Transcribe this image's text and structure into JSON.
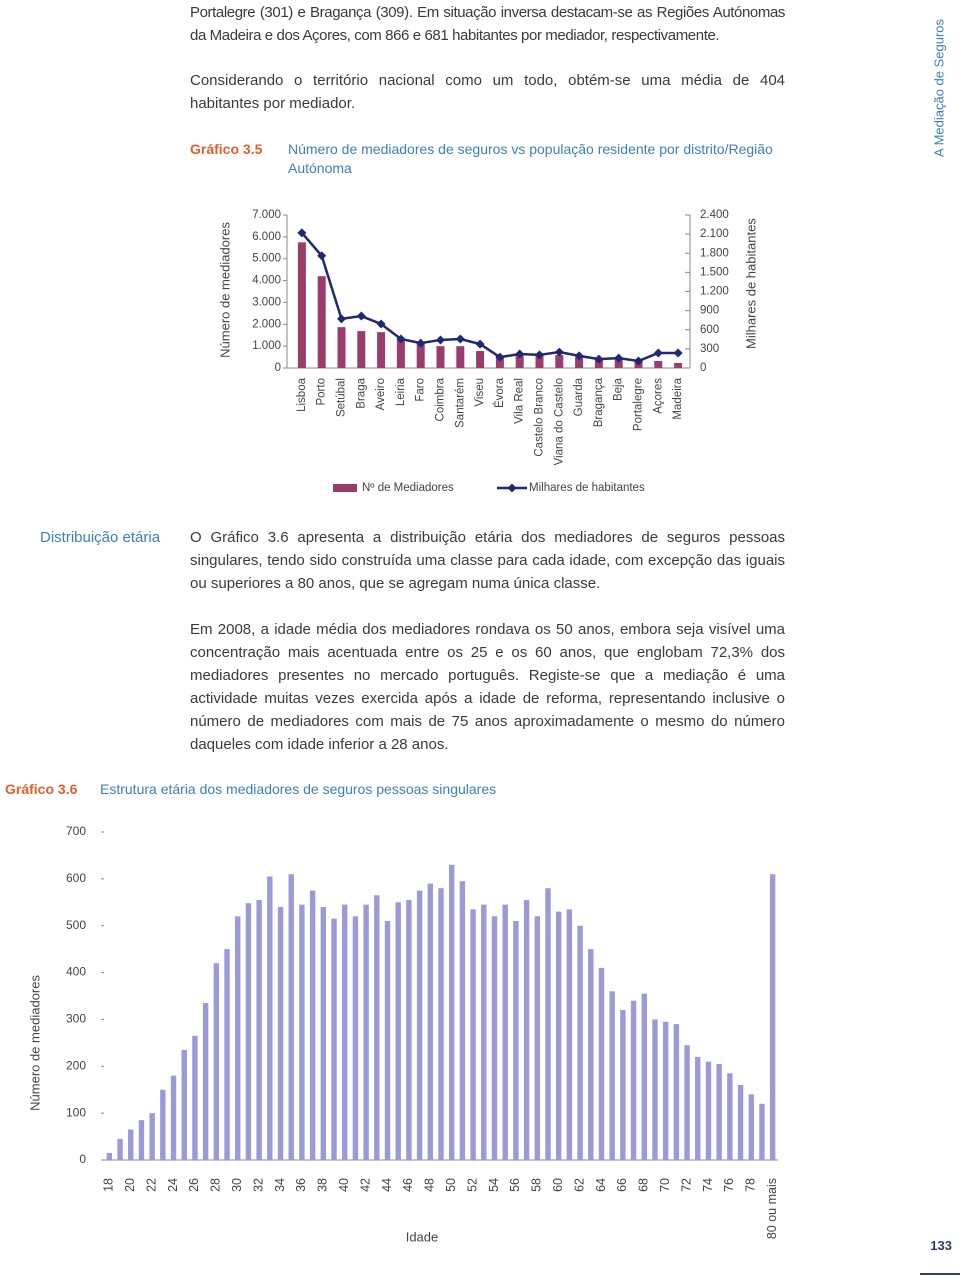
{
  "side_label": "A Mediação de Seguros",
  "paragraphs_top": [
    "Portalegre (301) e Bragança (309). Em situação inversa destacam-se as Regiões Autónomas da Madeira e dos Açores, com 866 e 681 habitantes por mediador, respectivamente.",
    "Considerando o território nacional como um todo, obtém-se uma média de 404 habitantes por mediador."
  ],
  "section_heading": "Distribuição etária",
  "paragraphs": [
    "O Gráfico 3.6 apresenta a distribuição etária dos mediadores de seguros pessoas singulares, tendo sido construída uma classe para cada idade, com excepção das iguais ou superiores a 80 anos, que se agregam numa única classe.",
    "Em 2008, a idade média dos mediadores rondava os 50 anos, embora seja visível uma concentração mais acentuada entre os 25 e os 60 anos, que englobam 72,3% dos mediadores presentes no mercado português. Registe-se que a mediação é uma actividade muitas vezes exercida após a idade de reforma, representando inclusive o número de mediadores com mais de 75 anos aproximadamente o mesmo do número daqueles com idade inferior a 28 anos."
  ],
  "page_number": "133",
  "chart_data": [
    {
      "type": "combo",
      "label": "Gráfico 3.5",
      "title": "Número de mediadores de seguros vs população residente por distrito/Região Autónoma",
      "ylabel": "Número de mediadores",
      "y2label": "Milhares de habitantes",
      "categories": [
        "Lisboa",
        "Porto",
        "Setúbal",
        "Braga",
        "Aveiro",
        "Leiria",
        "Faro",
        "Coimbra",
        "Santarém",
        "Viseu",
        "Évora",
        "Vila Real",
        "Castelo Branco",
        "Viana do Castelo",
        "Guarda",
        "Bragança",
        "Beja",
        "Portalegre",
        "Açores",
        "Madeira"
      ],
      "series": [
        {
          "name": "Nº de Mediadores",
          "kind": "bar",
          "color": "#9b3d6c",
          "values": [
            5750,
            4200,
            1870,
            1690,
            1640,
            1280,
            1140,
            1000,
            1000,
            780,
            550,
            590,
            590,
            590,
            500,
            410,
            410,
            320,
            320,
            230
          ]
        },
        {
          "name": "Milhares de habitantes",
          "kind": "line",
          "axis": "y2",
          "color": "#1f2870",
          "values": [
            2120,
            1760,
            770,
            815,
            690,
            455,
            390,
            440,
            455,
            375,
            170,
            220,
            205,
            250,
            190,
            140,
            155,
            110,
            235,
            235
          ]
        }
      ],
      "ylim": [
        0,
        7000
      ],
      "yticks": [
        0,
        {
          "value": 1000,
          "label": "1.000"
        },
        {
          "value": 2000,
          "label": "2.000"
        },
        {
          "value": 3000,
          "label": "3.000"
        },
        {
          "value": 4000,
          "label": "4.000"
        },
        {
          "value": 5000,
          "label": "5.000"
        },
        {
          "value": 6000,
          "label": "6.000"
        },
        {
          "value": 7000,
          "label": "7.000"
        }
      ],
      "y2lim": [
        0,
        2400
      ],
      "y2ticks": [
        0,
        300,
        600,
        900,
        {
          "value": 1200,
          "label": "1.200"
        },
        {
          "value": 1500,
          "label": "1.500"
        },
        {
          "value": 1800,
          "label": "1.800"
        },
        {
          "value": 2100,
          "label": "2.100"
        },
        {
          "value": 2400,
          "label": "2.400"
        }
      ],
      "legend": "bottom"
    },
    {
      "type": "bar",
      "label": "Gráfico 3.6",
      "title": "Estrutura etária dos mediadores de seguros pessoas singulares",
      "xlabel": "Idade",
      "ylabel": "Número de mediadores",
      "color": "#9a9ad8",
      "categories": [
        18,
        null,
        20,
        null,
        22,
        null,
        24,
        null,
        26,
        null,
        28,
        null,
        30,
        null,
        32,
        null,
        34,
        null,
        36,
        null,
        38,
        null,
        40,
        null,
        42,
        null,
        44,
        null,
        46,
        null,
        48,
        null,
        50,
        null,
        52,
        null,
        54,
        null,
        56,
        null,
        58,
        null,
        60,
        null,
        62,
        null,
        64,
        null,
        66,
        null,
        68,
        null,
        70,
        null,
        72,
        null,
        74,
        null,
        76,
        null,
        78,
        null,
        "80 ou mais"
      ],
      "values": [
        15,
        45,
        65,
        85,
        100,
        150,
        180,
        235,
        265,
        335,
        420,
        450,
        520,
        548,
        555,
        605,
        540,
        610,
        545,
        575,
        540,
        515,
        545,
        520,
        545,
        565,
        510,
        550,
        555,
        575,
        590,
        580,
        630,
        595,
        535,
        545,
        520,
        545,
        510,
        555,
        520,
        580,
        530,
        535,
        500,
        450,
        410,
        360,
        320,
        340,
        355,
        300,
        295,
        290,
        245,
        220,
        210,
        205,
        185,
        160,
        140,
        120,
        610
      ],
      "ylim": [
        0,
        700
      ],
      "yticks": [
        0,
        100,
        200,
        300,
        400,
        500,
        600,
        700
      ]
    }
  ]
}
